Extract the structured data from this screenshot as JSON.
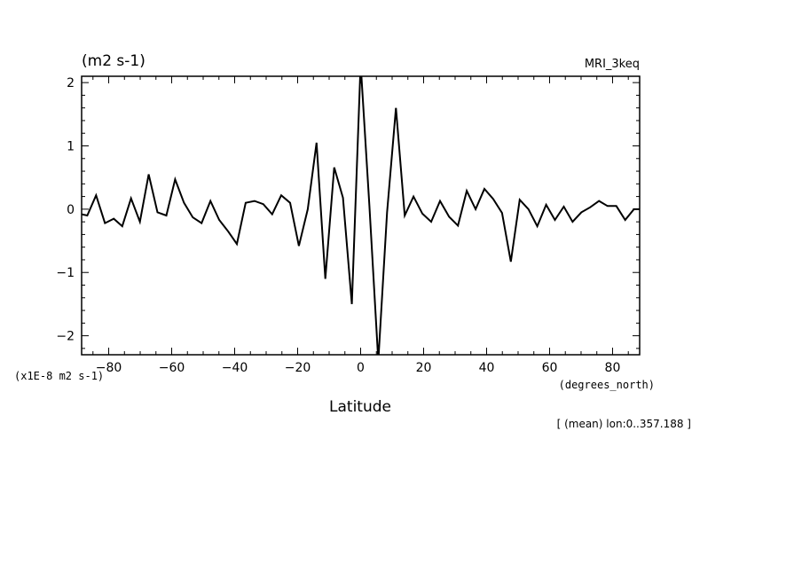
{
  "chart_data": {
    "type": "line",
    "units_label": "(m2 s-1)",
    "model_label": "MRI_3keq",
    "scale_label": "(x1E-8 m2 s-1)",
    "xlabel": "Latitude",
    "x_units": "(degrees_north)",
    "footnote": "[ (mean) lon:0..357.188 ]",
    "xlim": [
      -88.6,
      88.6
    ],
    "ylim": [
      -2.3,
      2.1
    ],
    "x_ticks": [
      -80,
      -60,
      -40,
      -20,
      0,
      20,
      40,
      60,
      80
    ],
    "x_tick_labels": [
      "−80",
      "−60",
      "−40",
      "−20",
      "0",
      "20",
      "40",
      "60",
      "80"
    ],
    "y_ticks": [
      -2,
      -1,
      0,
      1,
      2
    ],
    "y_tick_labels": [
      "−2",
      "−1",
      "0",
      "1",
      "2"
    ],
    "series": [
      {
        "x": [
          -88.6,
          -86.8,
          -84.0,
          -81.2,
          -78.4,
          -75.7,
          -72.9,
          -70.1,
          -67.3,
          -64.5,
          -61.7,
          -58.9,
          -56.1,
          -53.3,
          -50.5,
          -47.7,
          -44.9,
          -42.1,
          -39.3,
          -36.5,
          -33.7,
          -30.9,
          -28.1,
          -25.2,
          -22.4,
          -19.6,
          -16.8,
          -14.0,
          -11.2,
          -8.4,
          -5.6,
          -2.8,
          0.0,
          2.8,
          5.6,
          8.4,
          11.2,
          14.0,
          16.8,
          19.6,
          22.4,
          25.2,
          28.1,
          30.9,
          33.7,
          36.5,
          39.3,
          42.1,
          44.9,
          47.7,
          50.5,
          53.3,
          56.1,
          58.9,
          61.7,
          64.5,
          67.3,
          70.1,
          72.9,
          75.7,
          78.4,
          81.2,
          84.0,
          86.8,
          88.6
        ],
        "values": [
          -0.08,
          -0.1,
          0.22,
          -0.22,
          -0.15,
          -0.27,
          0.17,
          -0.2,
          0.55,
          -0.05,
          -0.1,
          0.47,
          0.1,
          -0.13,
          -0.22,
          0.13,
          -0.17,
          -0.35,
          -0.55,
          0.1,
          0.13,
          0.08,
          -0.08,
          0.22,
          0.1,
          -0.58,
          0.0,
          1.05,
          -1.1,
          0.66,
          0.18,
          -1.5,
          2.3,
          0.05,
          -2.4,
          -0.05,
          1.6,
          -0.1,
          0.2,
          -0.07,
          -0.2,
          0.13,
          -0.12,
          -0.26,
          0.29,
          0.0,
          0.32,
          0.16,
          -0.06,
          -0.83,
          0.15,
          0.0,
          -0.27,
          0.07,
          -0.17,
          0.04,
          -0.2,
          -0.05,
          0.03,
          0.13,
          0.05,
          0.05,
          -0.17,
          0.0,
          0.0
        ]
      }
    ]
  }
}
